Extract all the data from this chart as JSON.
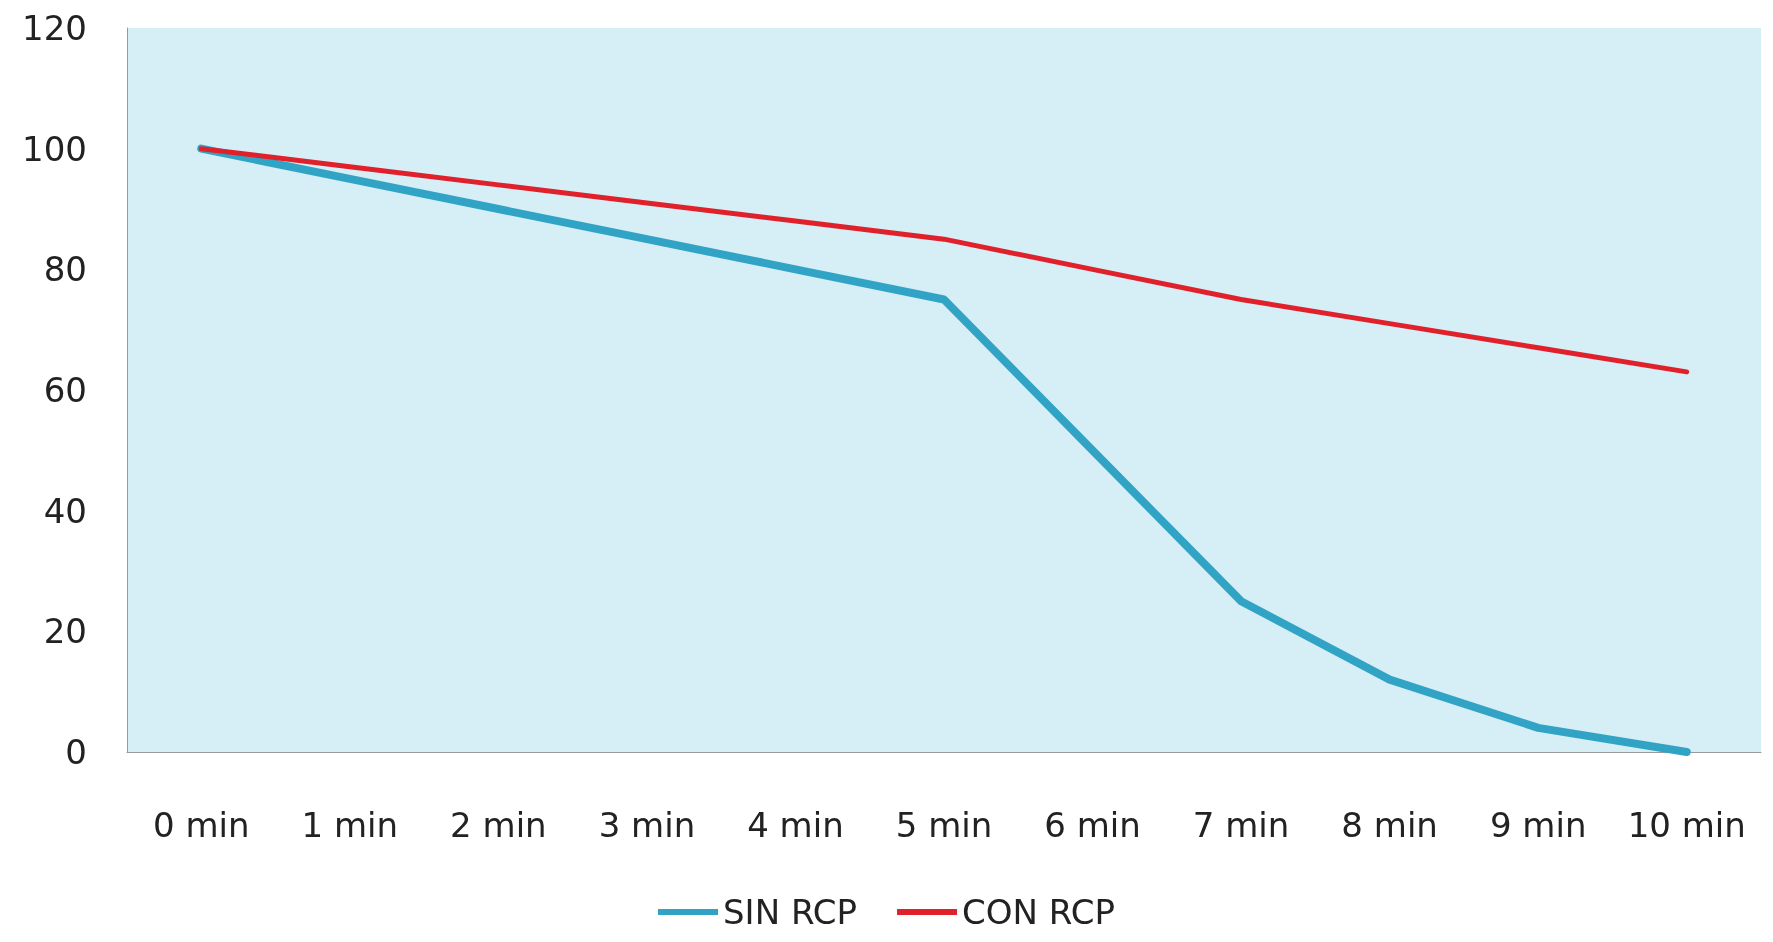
{
  "chart_data": {
    "type": "line",
    "categories": [
      "0 min",
      "1 min",
      "2 min",
      "3 min",
      "4 min",
      "5 min",
      "6 min",
      "7 min",
      "8 min",
      "9 min",
      "10 min"
    ],
    "series": [
      {
        "name": "SIN RCP",
        "color": "#31a4c6",
        "values": [
          100,
          95,
          90,
          85,
          80,
          75,
          50,
          25,
          12,
          4,
          0
        ]
      },
      {
        "name": "CON RCP",
        "color": "#e0212b",
        "values": [
          100,
          97,
          94,
          91,
          88,
          85,
          80,
          75,
          71,
          67,
          63
        ]
      }
    ],
    "ylim": [
      0,
      120
    ],
    "yticks": [
      0,
      20,
      40,
      60,
      80,
      100,
      120
    ],
    "grid": false,
    "legend": "bottom",
    "marker": "none",
    "line_style": "solid"
  }
}
